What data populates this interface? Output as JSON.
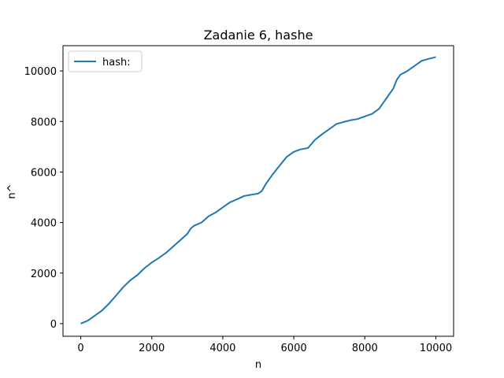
{
  "chart_data": {
    "type": "line",
    "title": "Zadanie 6, hashe",
    "xlabel": "n",
    "ylabel": "n^",
    "xlim": [
      -500,
      10500
    ],
    "ylim": [
      -500,
      11000
    ],
    "xticks": [
      0,
      2000,
      4000,
      6000,
      8000,
      10000
    ],
    "yticks": [
      0,
      2000,
      4000,
      6000,
      8000,
      10000
    ],
    "xtick_labels": [
      "0",
      "2000",
      "4000",
      "6000",
      "8000",
      "10000"
    ],
    "ytick_labels": [
      "0",
      "2000",
      "4000",
      "6000",
      "8000",
      "10000"
    ],
    "grid": false,
    "legend": {
      "position": "top-left"
    },
    "series": [
      {
        "name": "hash:",
        "color": "#1f77b4",
        "points": [
          [
            0,
            0
          ],
          [
            200,
            120
          ],
          [
            400,
            320
          ],
          [
            600,
            520
          ],
          [
            800,
            800
          ],
          [
            1000,
            1120
          ],
          [
            1200,
            1450
          ],
          [
            1400,
            1720
          ],
          [
            1600,
            1930
          ],
          [
            1800,
            2200
          ],
          [
            2000,
            2420
          ],
          [
            2200,
            2600
          ],
          [
            2400,
            2800
          ],
          [
            2600,
            3050
          ],
          [
            2800,
            3300
          ],
          [
            3000,
            3550
          ],
          [
            3100,
            3770
          ],
          [
            3200,
            3880
          ],
          [
            3400,
            4000
          ],
          [
            3600,
            4250
          ],
          [
            3800,
            4400
          ],
          [
            4000,
            4600
          ],
          [
            4200,
            4800
          ],
          [
            4400,
            4920
          ],
          [
            4600,
            5050
          ],
          [
            4800,
            5100
          ],
          [
            5000,
            5150
          ],
          [
            5100,
            5250
          ],
          [
            5200,
            5500
          ],
          [
            5400,
            5900
          ],
          [
            5600,
            6250
          ],
          [
            5800,
            6600
          ],
          [
            6000,
            6800
          ],
          [
            6200,
            6900
          ],
          [
            6400,
            6950
          ],
          [
            6600,
            7280
          ],
          [
            6800,
            7500
          ],
          [
            7000,
            7700
          ],
          [
            7200,
            7900
          ],
          [
            7400,
            7980
          ],
          [
            7600,
            8050
          ],
          [
            7800,
            8100
          ],
          [
            8000,
            8200
          ],
          [
            8200,
            8300
          ],
          [
            8400,
            8500
          ],
          [
            8600,
            8900
          ],
          [
            8800,
            9300
          ],
          [
            8900,
            9650
          ],
          [
            9000,
            9850
          ],
          [
            9200,
            10000
          ],
          [
            9400,
            10200
          ],
          [
            9600,
            10400
          ],
          [
            9800,
            10480
          ],
          [
            10000,
            10550
          ]
        ]
      }
    ]
  }
}
